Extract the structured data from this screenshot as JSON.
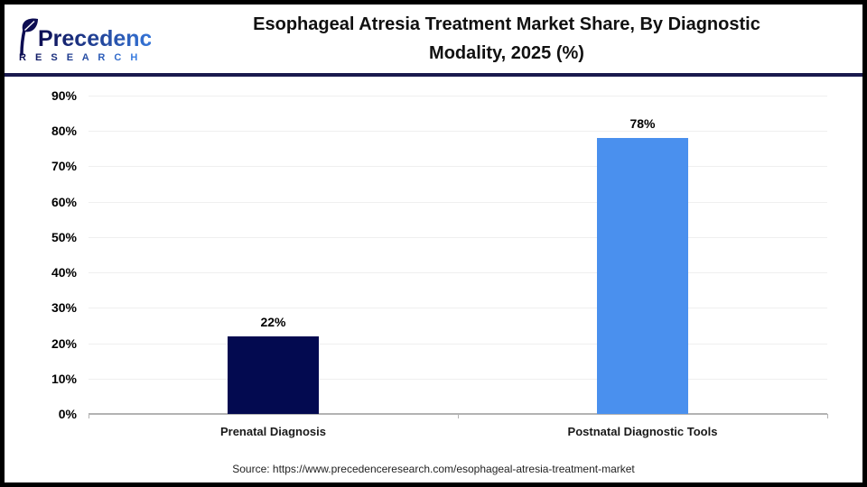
{
  "header": {
    "logo": {
      "brand": "Precedence",
      "sub": "R E S E A R C H"
    },
    "title": "Esophageal Atresia Treatment Market Share, By Diagnostic Modality, 2025 (%)"
  },
  "chart_data": {
    "type": "bar",
    "title": "Esophageal Atresia Treatment Market Share, By Diagnostic Modality, 2025 (%)",
    "categories": [
      "Prenatal Diagnosis",
      "Postnatal Diagnostic Tools"
    ],
    "values": [
      22,
      78
    ],
    "value_labels": [
      "22%",
      "78%"
    ],
    "bar_colors": [
      "#030a50",
      "#4a90ee"
    ],
    "xlabel": "",
    "ylabel": "",
    "ylim": [
      0,
      90
    ],
    "ytick_step": 10,
    "ytick_labels": [
      "0%",
      "10%",
      "20%",
      "30%",
      "40%",
      "50%",
      "60%",
      "70%",
      "80%",
      "90%"
    ],
    "grid": "horizontal",
    "legend": "none"
  },
  "footer": {
    "source": "Source: https://www.precedenceresearch.com/esophageal-atresia-treatment-market"
  },
  "colors": {
    "divider": "#1a1a4e",
    "axis": "#b3b3b3",
    "gridline": "#efefef",
    "frame_border": "#000000",
    "logo_dark": "#0d0d52",
    "logo_blue": "#3b82e8"
  }
}
